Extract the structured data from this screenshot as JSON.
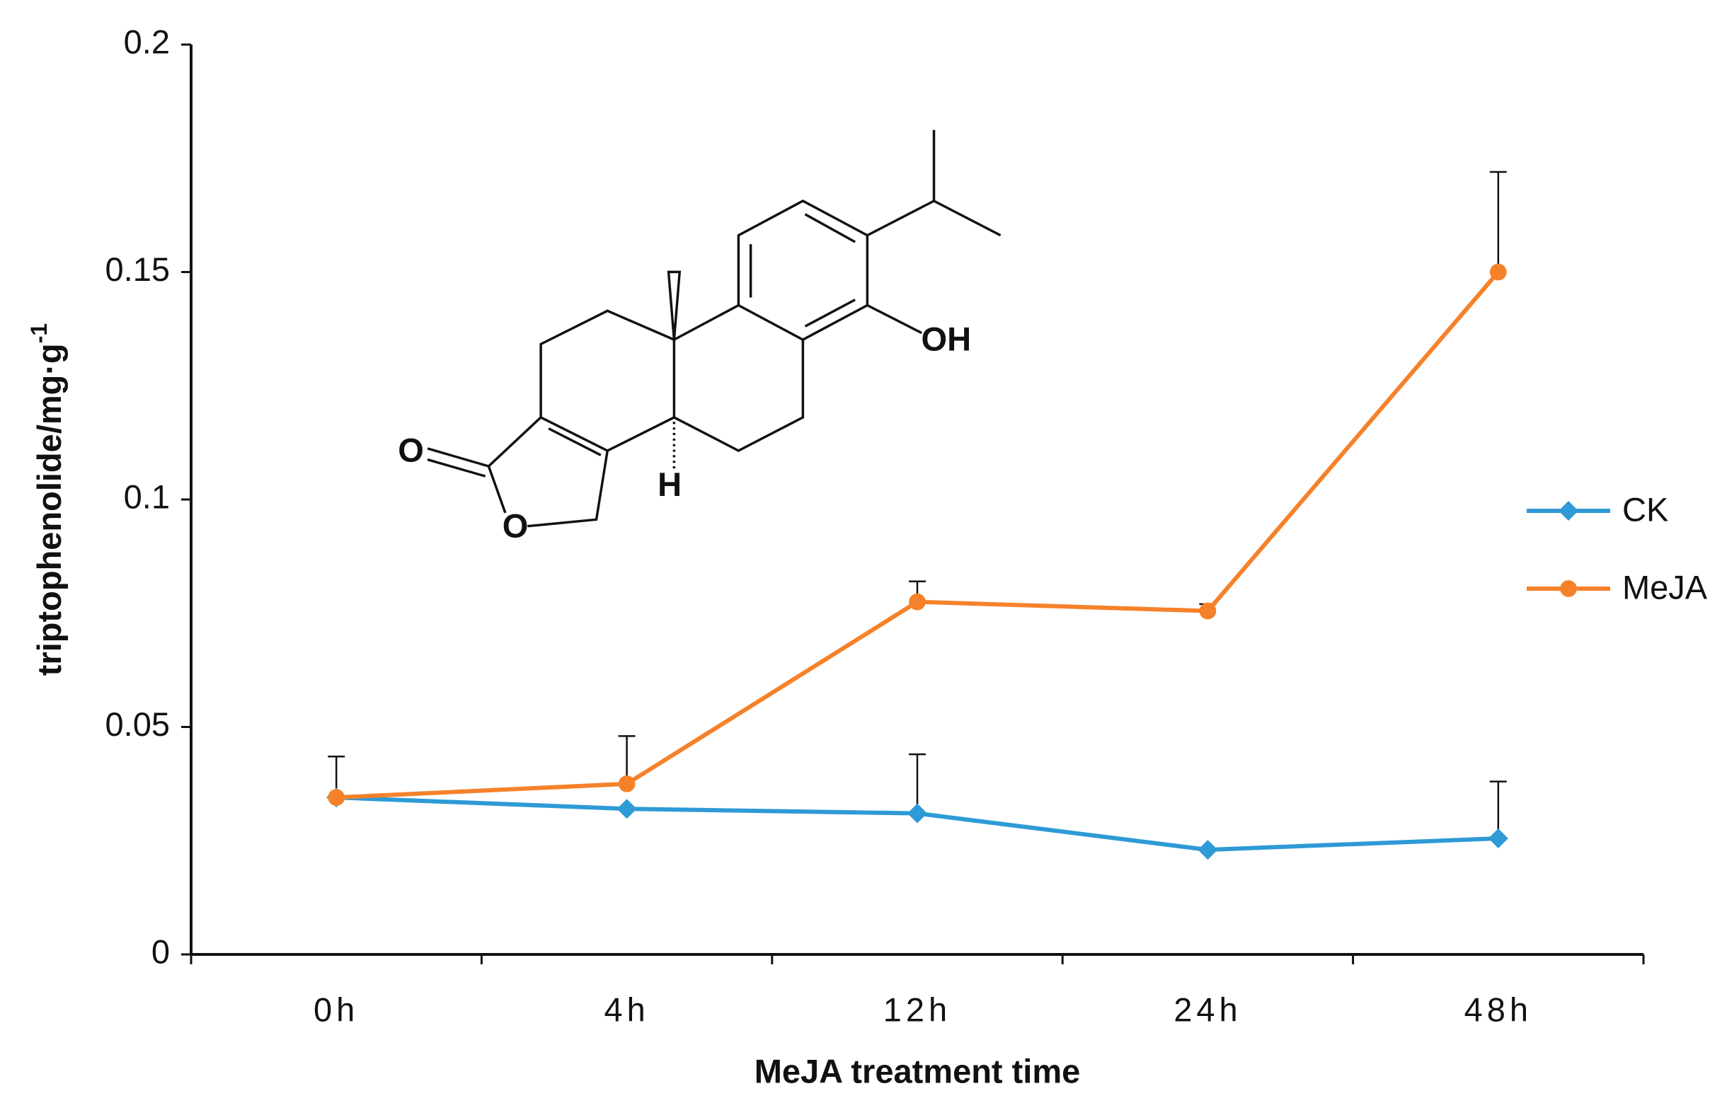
{
  "chart_data": {
    "type": "line",
    "x_label": "MeJA treatment time",
    "y_label": "triptophenolide/mg·g",
    "y_label_sup": "-1",
    "categories": [
      "0h",
      "4h",
      "12h",
      "24h",
      "48h"
    ],
    "series": [
      {
        "name": "CK",
        "color": "#2e9ad6",
        "marker": "diamond",
        "values": [
          0.0345,
          0.032,
          0.031,
          0.023,
          0.0255
        ],
        "errors": [
          null,
          null,
          0.013,
          null,
          0.0125
        ]
      },
      {
        "name": "MeJA",
        "color": "#f5822a",
        "marker": "circle",
        "values": [
          0.0345,
          0.0375,
          0.0775,
          0.0755,
          0.15
        ],
        "errors": [
          0.009,
          0.0105,
          0.0045,
          0.0015,
          0.022
        ]
      }
    ],
    "ylim": [
      0,
      0.2
    ],
    "yticks": [
      0,
      0.05,
      0.1,
      0.15,
      0.2
    ],
    "grid": false,
    "legend": "right",
    "structure_labels": [
      "OH",
      "O",
      "O",
      "H"
    ]
  }
}
